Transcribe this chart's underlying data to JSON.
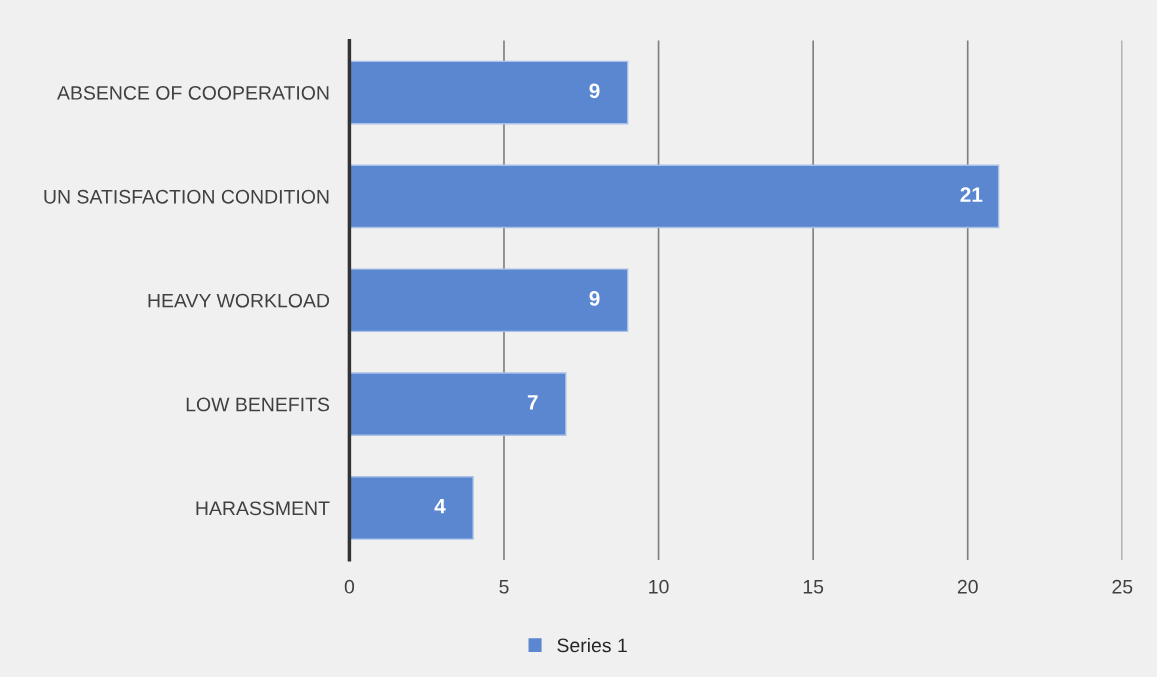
{
  "chart_data": {
    "type": "bar",
    "orientation": "horizontal",
    "categories": [
      "ABSENCE OF COOPERATION",
      "UN SATISFACTION CONDITION",
      "HEAVY WORKLOAD",
      "LOW BENEFITS",
      "HARASSMENT"
    ],
    "series": [
      {
        "name": "Series 1",
        "color": "#5b86d0",
        "values": [
          9,
          21,
          9,
          7,
          4
        ]
      }
    ],
    "xlim": [
      0,
      25
    ],
    "xticks": [
      0,
      5,
      10,
      15,
      20,
      25
    ],
    "grid": "x",
    "data_labels": true,
    "legend": "bottom"
  }
}
